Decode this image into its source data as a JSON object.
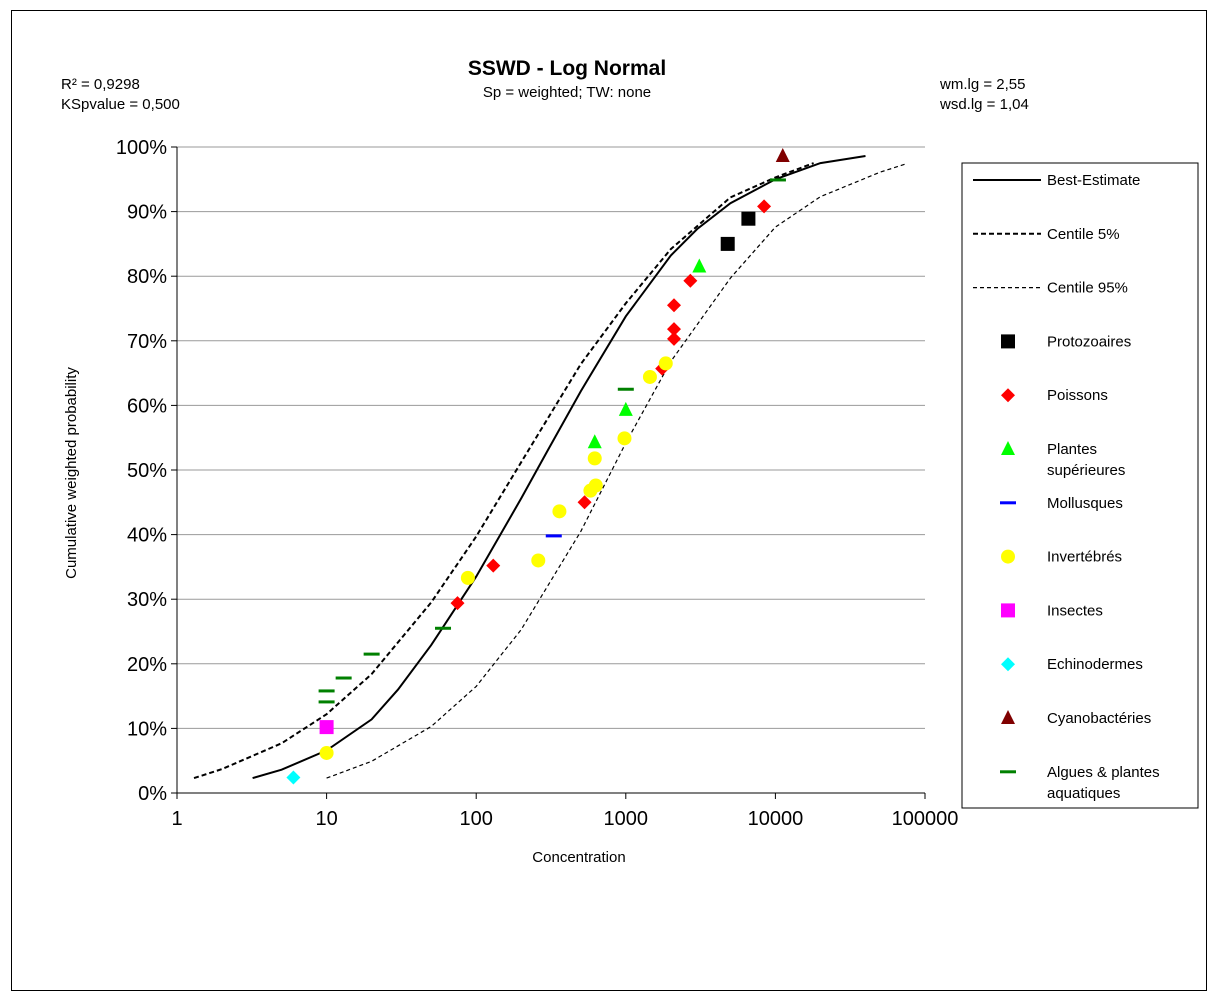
{
  "chart_data": {
    "type": "scatter",
    "title": "SSWD - Log Normal",
    "subtitle": "Sp = weighted; TW: none",
    "stats_left": [
      "R² = 0,9298",
      "KSpvalue = 0,500"
    ],
    "stats_right": [
      "wm.lg = 2,55",
      "wsd.lg = 1,04"
    ],
    "xlabel": "Concentration",
    "ylabel": "Cumulative weighted probability",
    "xscale": "log",
    "xlim": [
      1,
      100000
    ],
    "ylim": [
      0,
      100
    ],
    "x_ticks": [
      "1",
      "10",
      "100",
      "1000",
      "10000",
      "100000"
    ],
    "y_ticks": [
      "0%",
      "10%",
      "20%",
      "30%",
      "40%",
      "50%",
      "60%",
      "70%",
      "80%",
      "90%",
      "100%"
    ],
    "grid": "horizontal",
    "legend_position": "right",
    "legend": [
      {
        "label": "Best-Estimate",
        "marker": "line-solid",
        "color": "#000000"
      },
      {
        "label": "Centile 5%",
        "marker": "line-dash-bold",
        "color": "#000000"
      },
      {
        "label": "Centile 95%",
        "marker": "line-dash",
        "color": "#000000"
      },
      {
        "label": "Protozoaires",
        "marker": "square",
        "color": "#000000"
      },
      {
        "label": "Poissons",
        "marker": "diamond",
        "color": "#ff0000"
      },
      {
        "label": [
          "Plantes",
          "supérieures"
        ],
        "marker": "triangle",
        "color": "#00ff00"
      },
      {
        "label": "Mollusques",
        "marker": "dash",
        "color": "#0000ff"
      },
      {
        "label": "Invertébrés",
        "marker": "circle",
        "color": "#ffff00"
      },
      {
        "label": "Insectes",
        "marker": "square",
        "color": "#ff00ff"
      },
      {
        "label": "Echinodermes",
        "marker": "diamond",
        "color": "#00ffff"
      },
      {
        "label": "Cyanobactéries",
        "marker": "triangle",
        "color": "#800000"
      },
      {
        "label": [
          "Algues & plantes",
          "aquatiques"
        ],
        "marker": "dash",
        "color": "#008000"
      }
    ],
    "curves": [
      {
        "name": "Best-Estimate",
        "style": "solid",
        "points": [
          [
            3.2,
            2.3
          ],
          [
            5,
            3.6
          ],
          [
            10,
            6.6
          ],
          [
            20,
            11.4
          ],
          [
            30,
            16
          ],
          [
            50,
            22.9
          ],
          [
            100,
            33.5
          ],
          [
            200,
            45.6
          ],
          [
            300,
            53
          ],
          [
            500,
            62.2
          ],
          [
            1000,
            73.8
          ],
          [
            2000,
            83.2
          ],
          [
            3000,
            87.3
          ],
          [
            5000,
            91.3
          ],
          [
            10000,
            95
          ],
          [
            20000,
            97.5
          ],
          [
            40000,
            98.6
          ]
        ]
      },
      {
        "name": "Centile 5%",
        "style": "dash-bold",
        "points": [
          [
            1.3,
            2.3
          ],
          [
            2,
            3.7
          ],
          [
            5,
            7.7
          ],
          [
            10,
            12.2
          ],
          [
            20,
            18.4
          ],
          [
            50,
            29.5
          ],
          [
            100,
            39.7
          ],
          [
            200,
            51.2
          ],
          [
            500,
            66.4
          ],
          [
            1000,
            75.8
          ],
          [
            2000,
            84.2
          ],
          [
            5000,
            92.2
          ],
          [
            10000,
            95.3
          ],
          [
            18000,
            97.5
          ]
        ]
      },
      {
        "name": "Centile 95%",
        "style": "dash",
        "points": [
          [
            10,
            2.3
          ],
          [
            20,
            4.9
          ],
          [
            50,
            10.3
          ],
          [
            100,
            16.5
          ],
          [
            200,
            25.3
          ],
          [
            500,
            40.5
          ],
          [
            1000,
            54.2
          ],
          [
            2000,
            66.8
          ],
          [
            5000,
            79.7
          ],
          [
            10000,
            87.6
          ],
          [
            20000,
            92.3
          ],
          [
            50000,
            96.1
          ],
          [
            75000,
            97.4
          ]
        ]
      }
    ],
    "series": [
      {
        "name": "Protozoaires",
        "marker": "square",
        "color": "#000000",
        "points": [
          [
            4800,
            85
          ],
          [
            6600,
            88.9
          ]
        ]
      },
      {
        "name": "Poissons",
        "marker": "diamond",
        "color": "#ff0000",
        "points": [
          [
            75,
            29.4
          ],
          [
            130,
            35.2
          ],
          [
            530,
            45
          ],
          [
            1750,
            65.7
          ],
          [
            2100,
            70.3
          ],
          [
            2100,
            71.8
          ],
          [
            2100,
            75.5
          ],
          [
            2700,
            79.3
          ],
          [
            8400,
            90.8
          ]
        ]
      },
      {
        "name": "Plantes supérieures",
        "marker": "triangle",
        "color": "#00ff00",
        "points": [
          [
            620,
            54.3
          ],
          [
            1000,
            59.3
          ],
          [
            3100,
            81.5
          ]
        ]
      },
      {
        "name": "Mollusques",
        "marker": "dash",
        "color": "#0000ff",
        "points": [
          [
            330,
            39.8
          ]
        ]
      },
      {
        "name": "Invertébrés",
        "marker": "circle",
        "color": "#ffff00",
        "points": [
          [
            10,
            6.2
          ],
          [
            88,
            33.3
          ],
          [
            260,
            36
          ],
          [
            360,
            43.6
          ],
          [
            580,
            46.8
          ],
          [
            630,
            47.6
          ],
          [
            620,
            51.8
          ],
          [
            980,
            54.9
          ],
          [
            1450,
            64.4
          ],
          [
            1850,
            66.5
          ]
        ]
      },
      {
        "name": "Insectes",
        "marker": "square",
        "color": "#ff00ff",
        "points": [
          [
            10,
            10.2
          ]
        ]
      },
      {
        "name": "Echinodermes",
        "marker": "diamond",
        "color": "#00ffff",
        "points": [
          [
            6,
            2.4
          ]
        ]
      },
      {
        "name": "Cyanobactéries",
        "marker": "triangle",
        "color": "#800000",
        "points": [
          [
            11200,
            98.6
          ]
        ]
      },
      {
        "name": "Algues & plantes aquatiques",
        "marker": "dash",
        "color": "#008000",
        "points": [
          [
            10,
            14.1
          ],
          [
            10,
            15.8
          ],
          [
            13,
            17.8
          ],
          [
            20,
            21.5
          ],
          [
            60,
            25.5
          ],
          [
            1000,
            62.5
          ],
          [
            10400,
            94.9
          ]
        ]
      }
    ]
  }
}
